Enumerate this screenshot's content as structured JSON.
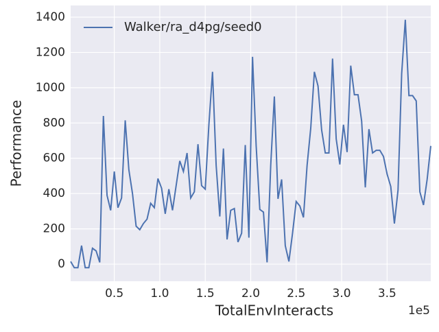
{
  "chart_data": {
    "type": "line",
    "xlabel": "TotalEnvInteracts",
    "ylabel": "Performance",
    "x_offset_label": "1e5",
    "x": [
      2000,
      6000,
      10000,
      14000,
      18000,
      22000,
      26000,
      30000,
      34000,
      38000,
      42000,
      46000,
      50000,
      54000,
      58000,
      62000,
      66000,
      70000,
      74000,
      78000,
      82000,
      86000,
      90000,
      94000,
      98000,
      102000,
      106000,
      110000,
      114000,
      118000,
      122000,
      126000,
      130000,
      134000,
      138000,
      142000,
      146000,
      150000,
      154000,
      158000,
      162000,
      166000,
      170000,
      174000,
      178000,
      182000,
      186000,
      190000,
      194000,
      198000,
      202000,
      206000,
      210000,
      214000,
      218000,
      222000,
      226000,
      230000,
      234000,
      238000,
      242000,
      246000,
      250000,
      254000,
      258000,
      262000,
      266000,
      270000,
      274000,
      278000,
      282000,
      286000,
      290000,
      294000,
      298000,
      302000,
      306000,
      310000,
      314000,
      318000,
      322000,
      326000,
      330000,
      334000,
      338000,
      342000,
      346000,
      350000,
      354000,
      358000,
      362000,
      366000,
      370000,
      374000,
      378000,
      382000,
      386000,
      390000,
      394000,
      398000
    ],
    "series": [
      {
        "name": "Walker/ra_d4pg/seed0",
        "color": "#4c72b0",
        "values": [
          15,
          -20,
          -20,
          105,
          -20,
          -20,
          90,
          75,
          10,
          840,
          390,
          305,
          525,
          320,
          375,
          815,
          535,
          400,
          215,
          195,
          230,
          255,
          345,
          320,
          485,
          430,
          285,
          425,
          305,
          445,
          585,
          525,
          630,
          375,
          410,
          680,
          445,
          425,
          790,
          1090,
          560,
          270,
          655,
          140,
          305,
          315,
          125,
          175,
          675,
          150,
          1175,
          670,
          310,
          295,
          10,
          560,
          950,
          370,
          480,
          105,
          15,
          175,
          355,
          330,
          265,
          560,
          770,
          1090,
          1010,
          760,
          630,
          630,
          1165,
          710,
          565,
          790,
          635,
          1125,
          960,
          960,
          810,
          435,
          765,
          630,
          645,
          645,
          610,
          510,
          440,
          230,
          420,
          1080,
          1385,
          955,
          955,
          925,
          410,
          335,
          480,
          670
        ]
      }
    ],
    "xlim": [
      2000,
      398000
    ],
    "ylim": [
      -97,
      1466
    ],
    "xticks": [
      {
        "value": 50000,
        "label": "0.5"
      },
      {
        "value": 100000,
        "label": "1.0"
      },
      {
        "value": 150000,
        "label": "1.5"
      },
      {
        "value": 200000,
        "label": "2.0"
      },
      {
        "value": 250000,
        "label": "2.5"
      },
      {
        "value": 300000,
        "label": "3.0"
      },
      {
        "value": 350000,
        "label": "3.5"
      }
    ],
    "yticks": [
      0,
      200,
      400,
      600,
      800,
      1000,
      1200,
      1400
    ],
    "grid": true,
    "legend": "upper left"
  }
}
